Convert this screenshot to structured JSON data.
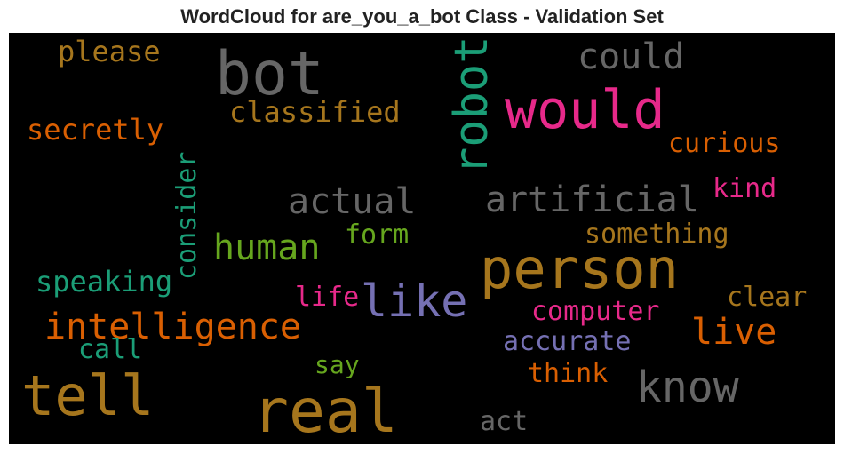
{
  "chart_data": {
    "type": "wordcloud",
    "title": "WordCloud for are_you_a_bot Class - Validation Set",
    "background": "#000000",
    "colormap": [
      "#1b9e77",
      "#d95f02",
      "#7570b3",
      "#e7298a",
      "#66a61e",
      "#e6ab02",
      "#a6761d",
      "#666666"
    ],
    "words": [
      {
        "text": "please",
        "color": "#a6761d",
        "size": 32,
        "vertical": false
      },
      {
        "text": "bot",
        "color": "#666666",
        "size": 68,
        "vertical": false
      },
      {
        "text": "robot",
        "color": "#1b9e77",
        "size": 52,
        "vertical": true
      },
      {
        "text": "could",
        "color": "#666666",
        "size": 40,
        "vertical": false
      },
      {
        "text": "would",
        "color": "#e7298a",
        "size": 60,
        "vertical": false
      },
      {
        "text": "classified",
        "color": "#a6761d",
        "size": 32,
        "vertical": false
      },
      {
        "text": "secretly",
        "color": "#d95f02",
        "size": 32,
        "vertical": false
      },
      {
        "text": "curious",
        "color": "#d95f02",
        "size": 30,
        "vertical": false
      },
      {
        "text": "consider",
        "color": "#1b9e77",
        "size": 30,
        "vertical": true
      },
      {
        "text": "kind",
        "color": "#e7298a",
        "size": 30,
        "vertical": false
      },
      {
        "text": "actual",
        "color": "#666666",
        "size": 40,
        "vertical": false
      },
      {
        "text": "artificial",
        "color": "#666666",
        "size": 40,
        "vertical": false
      },
      {
        "text": "human",
        "color": "#66a61e",
        "size": 40,
        "vertical": false
      },
      {
        "text": "form",
        "color": "#66a61e",
        "size": 30,
        "vertical": false
      },
      {
        "text": "something",
        "color": "#a6761d",
        "size": 30,
        "vertical": false
      },
      {
        "text": "person",
        "color": "#a6761d",
        "size": 62,
        "vertical": false
      },
      {
        "text": "speaking",
        "color": "#1b9e77",
        "size": 32,
        "vertical": false
      },
      {
        "text": "life",
        "color": "#e7298a",
        "size": 30,
        "vertical": false
      },
      {
        "text": "like",
        "color": "#7570b3",
        "size": 50,
        "vertical": false
      },
      {
        "text": "clear",
        "color": "#a6761d",
        "size": 30,
        "vertical": false
      },
      {
        "text": "intelligence",
        "color": "#d95f02",
        "size": 40,
        "vertical": false
      },
      {
        "text": "computer",
        "color": "#e7298a",
        "size": 30,
        "vertical": false
      },
      {
        "text": "live",
        "color": "#d95f02",
        "size": 40,
        "vertical": false
      },
      {
        "text": "call",
        "color": "#1b9e77",
        "size": 30,
        "vertical": false
      },
      {
        "text": "accurate",
        "color": "#7570b3",
        "size": 30,
        "vertical": false
      },
      {
        "text": "say",
        "color": "#66a61e",
        "size": 28,
        "vertical": false
      },
      {
        "text": "think",
        "color": "#d95f02",
        "size": 30,
        "vertical": false
      },
      {
        "text": "tell",
        "color": "#a6761d",
        "size": 62,
        "vertical": false
      },
      {
        "text": "real",
        "color": "#a6761d",
        "size": 68,
        "vertical": false
      },
      {
        "text": "know",
        "color": "#666666",
        "size": 48,
        "vertical": false
      },
      {
        "text": "act",
        "color": "#666666",
        "size": 30,
        "vertical": false
      }
    ]
  }
}
